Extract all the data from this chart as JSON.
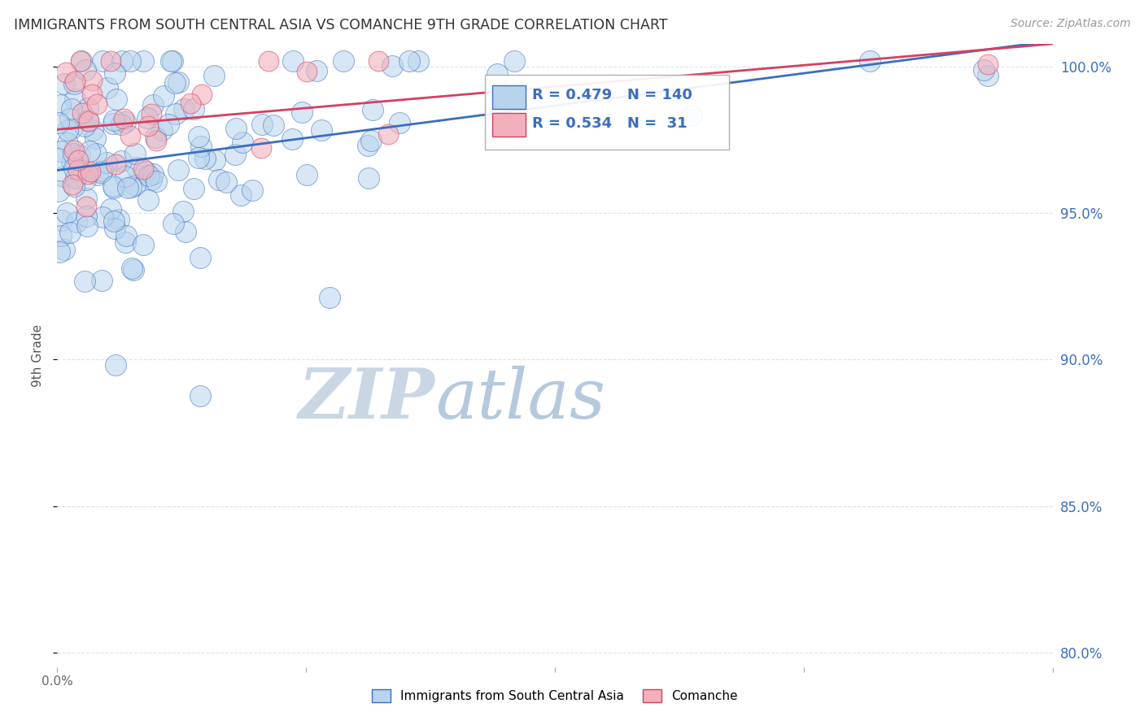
{
  "title": "IMMIGRANTS FROM SOUTH CENTRAL ASIA VS COMANCHE 9TH GRADE CORRELATION CHART",
  "source_text": "Source: ZipAtlas.com",
  "ylabel": "9th Grade",
  "xlim": [
    0.0,
    0.08
  ],
  "ylim": [
    0.795,
    1.008
  ],
  "xtick_vals": [
    0.0,
    0.02,
    0.04,
    0.06,
    0.08
  ],
  "xtick_labels": [
    "0.0%",
    "",
    "",
    "",
    ""
  ],
  "ytick_vals": [
    0.8,
    0.85,
    0.9,
    0.95,
    1.0
  ],
  "ytick_labels": [
    "80.0%",
    "85.0%",
    "90.0%",
    "95.0%",
    "100.0%"
  ],
  "legend_labels": [
    "Immigrants from South Central Asia",
    "Comanche"
  ],
  "blue_R": 0.479,
  "blue_N": 140,
  "pink_R": 0.534,
  "pink_N": 31,
  "blue_color": "#b8d4ed",
  "pink_color": "#f2b0bc",
  "line_blue": "#3a6ebf",
  "line_pink": "#d44060",
  "text_blue": "#3a6ebf",
  "watermark_zip_color": "#c5d5e8",
  "watermark_atlas_color": "#c8d8e8",
  "background_color": "#ffffff",
  "grid_color": "#d8e4f0",
  "title_color": "#333333",
  "source_color": "#999999"
}
